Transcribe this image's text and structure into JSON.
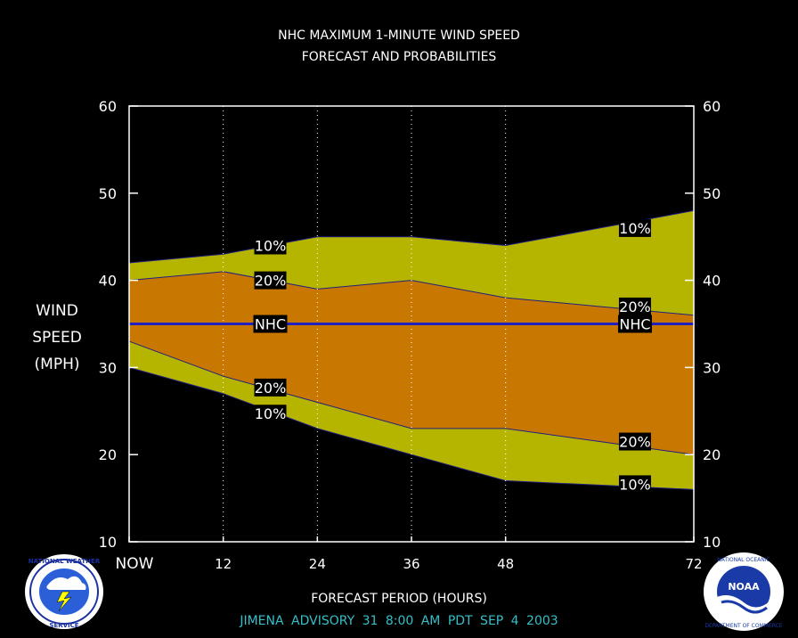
{
  "title_line1": "NHC MAXIMUM 1-MINUTE WIND SPEED",
  "title_line2": "FORECAST AND PROBABILITIES",
  "ylabel": {
    "line1": "WIND",
    "line2": "SPEED",
    "line3": "(MPH)"
  },
  "xlabel": "FORECAST PERIOD (HOURS)",
  "advisory": "JIMENA   ADVISORY  31 8:00  AM  PDT  SEP  4  2003",
  "advisory_color": "#33c0c8",
  "logos": {
    "left": "National Weather Service",
    "right": "NOAA"
  },
  "chart_data": {
    "type": "area",
    "title": "NHC MAXIMUM 1-MINUTE WIND SPEED FORECAST AND PROBABILITIES",
    "xlabel": "FORECAST PERIOD (HOURS)",
    "ylabel": "WIND SPEED (MPH)",
    "x": [
      0,
      12,
      24,
      36,
      48,
      60,
      72
    ],
    "xlim": [
      0,
      72
    ],
    "ylim": [
      10,
      60
    ],
    "x_ticks": [
      0,
      12,
      24,
      36,
      48,
      72
    ],
    "x_tick_labels": [
      "NOW",
      "12",
      "24",
      "36",
      "48",
      "72"
    ],
    "y_ticks": [
      10,
      20,
      30,
      40,
      50,
      60
    ],
    "y_tick_labels": [
      "10",
      "20",
      "30",
      "40",
      "50",
      "60"
    ],
    "grid": "vertical dotted",
    "series": [
      {
        "name": "10%",
        "role": "upper",
        "values": [
          42,
          43,
          45,
          45,
          44,
          46,
          48
        ]
      },
      {
        "name": "20%",
        "role": "upper",
        "values": [
          40,
          41,
          39,
          40,
          38,
          37,
          36
        ]
      },
      {
        "name": "NHC",
        "values": [
          35,
          35,
          35,
          35,
          35,
          35,
          35
        ]
      },
      {
        "name": "20%",
        "role": "lower",
        "values": [
          33,
          29,
          26,
          23,
          23,
          21.5,
          20
        ]
      },
      {
        "name": "10%",
        "role": "lower",
        "values": [
          30,
          27,
          23,
          20,
          17,
          16.5,
          16
        ]
      }
    ],
    "annotations": [
      {
        "text": "10%",
        "x": 18,
        "y": 44
      },
      {
        "text": "20%",
        "x": 18,
        "y": 40
      },
      {
        "text": "NHC",
        "x": 18,
        "y": 35
      },
      {
        "text": "20%",
        "x": 18,
        "y": 27.7
      },
      {
        "text": "10%",
        "x": 18,
        "y": 24.7
      },
      {
        "text": "10%",
        "x": 64.5,
        "y": 46
      },
      {
        "text": "20%",
        "x": 64.5,
        "y": 37
      },
      {
        "text": "NHC",
        "x": 64.5,
        "y": 35
      },
      {
        "text": "20%",
        "x": 64.5,
        "y": 21.5
      },
      {
        "text": "10%",
        "x": 64.5,
        "y": 16.6
      }
    ],
    "colors": {
      "band10": "#b5b500",
      "band20": "#c87800",
      "nhc_line": "#2020c0",
      "frame": "#ffffff"
    }
  }
}
